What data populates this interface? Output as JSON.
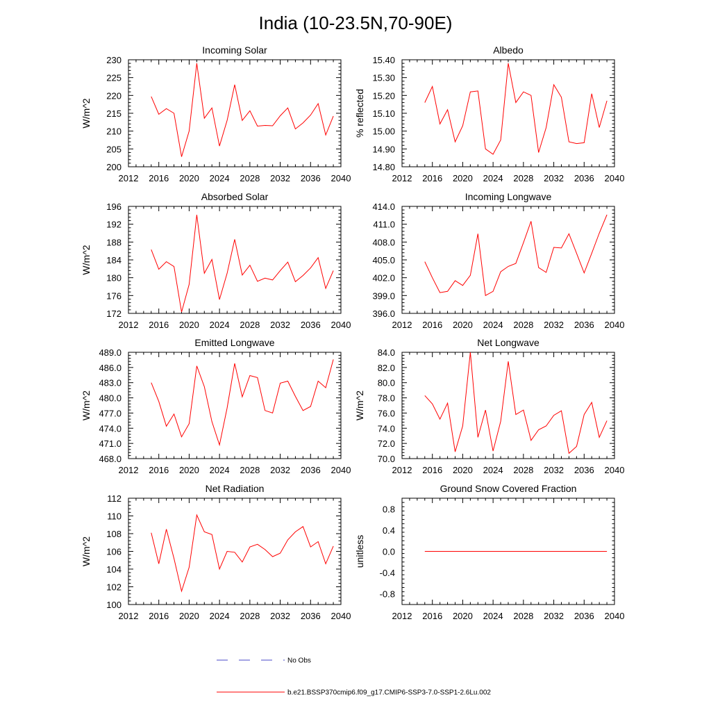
{
  "page": {
    "title": "India (10-23.5N,70-90E)"
  },
  "legend": {
    "obs_label": "No Obs",
    "model_label": "b.e21.BSSP370cmip6.f09_g17.CMIP6-SSP3-7.0-SSP1-2.6Lu.002",
    "obs_color": "#4a4ac8",
    "model_color": "#ff0000"
  },
  "chart_data": [
    {
      "type": "line",
      "title": "Incoming Solar",
      "ylabel": "W/m^2",
      "xlim": [
        2012,
        2040
      ],
      "xticks": [
        2012,
        2016,
        2020,
        2024,
        2028,
        2032,
        2036,
        2040
      ],
      "ylim": [
        200,
        230
      ],
      "yticks": [
        200,
        205,
        210,
        215,
        220,
        225,
        230
      ],
      "ydecimals": 0,
      "series": [
        {
          "color": "#ff0000",
          "x": [
            2015,
            2016,
            2017,
            2018,
            2019,
            2020,
            2021,
            2022,
            2023,
            2024,
            2025,
            2026,
            2027,
            2028,
            2029,
            2030,
            2031,
            2032,
            2033,
            2034,
            2035,
            2036,
            2037,
            2038,
            2039
          ],
          "values": [
            219.7,
            214.7,
            216.3,
            215.0,
            202.8,
            210.0,
            229.0,
            213.6,
            216.5,
            205.8,
            213.0,
            223.0,
            213.0,
            215.7,
            211.4,
            211.6,
            211.5,
            214.3,
            216.5,
            210.6,
            212.3,
            214.5,
            217.7,
            208.9,
            214.2
          ]
        }
      ]
    },
    {
      "type": "line",
      "title": "Albedo",
      "ylabel": "% reflected",
      "xlim": [
        2012,
        2040
      ],
      "xticks": [
        2012,
        2016,
        2020,
        2024,
        2028,
        2032,
        2036,
        2040
      ],
      "ylim": [
        14.8,
        15.4
      ],
      "yticks": [
        14.8,
        14.9,
        15.0,
        15.1,
        15.2,
        15.3,
        15.4
      ],
      "ydecimals": 2,
      "series": [
        {
          "color": "#ff0000",
          "x": [
            2015,
            2016,
            2017,
            2018,
            2019,
            2020,
            2021,
            2022,
            2023,
            2024,
            2025,
            2026,
            2027,
            2028,
            2029,
            2030,
            2031,
            2032,
            2033,
            2034,
            2035,
            2036,
            2037,
            2038,
            2039
          ],
          "values": [
            15.16,
            15.25,
            15.04,
            15.12,
            14.94,
            15.03,
            15.22,
            15.225,
            14.9,
            14.87,
            14.95,
            15.38,
            15.16,
            15.22,
            15.2,
            14.88,
            15.02,
            15.26,
            15.19,
            14.94,
            14.93,
            14.935,
            15.21,
            15.02,
            15.17
          ]
        }
      ]
    },
    {
      "type": "line",
      "title": "Absorbed Solar",
      "ylabel": "W/m^2",
      "xlim": [
        2012,
        2040
      ],
      "xticks": [
        2012,
        2016,
        2020,
        2024,
        2028,
        2032,
        2036,
        2040
      ],
      "ylim": [
        172,
        196
      ],
      "yticks": [
        172,
        176,
        180,
        184,
        188,
        192,
        196
      ],
      "ydecimals": 0,
      "series": [
        {
          "color": "#ff0000",
          "x": [
            2015,
            2016,
            2017,
            2018,
            2019,
            2020,
            2021,
            2022,
            2023,
            2024,
            2025,
            2026,
            2027,
            2028,
            2029,
            2030,
            2031,
            2032,
            2033,
            2034,
            2035,
            2036,
            2037,
            2038,
            2039
          ],
          "values": [
            186.3,
            181.9,
            183.6,
            182.5,
            172.3,
            178.5,
            194.1,
            181.0,
            184.1,
            175.1,
            181.0,
            188.6,
            180.6,
            182.8,
            179.2,
            179.9,
            179.5,
            181.6,
            183.5,
            179.1,
            180.5,
            182.2,
            184.5,
            177.6,
            181.6
          ]
        }
      ]
    },
    {
      "type": "line",
      "title": "Incoming Longwave",
      "ylabel": "",
      "xlim": [
        2012,
        2040
      ],
      "xticks": [
        2012,
        2016,
        2020,
        2024,
        2028,
        2032,
        2036,
        2040
      ],
      "ylim": [
        396,
        414
      ],
      "yticks": [
        396,
        399,
        402,
        405,
        408,
        411,
        414
      ],
      "ydecimals": 1,
      "series": [
        {
          "color": "#ff0000",
          "x": [
            2015,
            2016,
            2017,
            2018,
            2019,
            2020,
            2021,
            2022,
            2023,
            2024,
            2025,
            2026,
            2027,
            2028,
            2029,
            2030,
            2031,
            2032,
            2033,
            2034,
            2035,
            2036,
            2037,
            2038,
            2039
          ],
          "values": [
            404.7,
            402.0,
            399.5,
            399.7,
            401.5,
            400.7,
            402.4,
            409.4,
            399.0,
            399.7,
            403.0,
            403.9,
            404.4,
            407.9,
            411.5,
            403.7,
            402.9,
            407.1,
            407.0,
            409.4,
            406.1,
            402.8,
            406.1,
            409.5,
            412.6
          ]
        }
      ]
    },
    {
      "type": "line",
      "title": "Emitted Longwave",
      "ylabel": "W/m^2",
      "xlim": [
        2012,
        2040
      ],
      "xticks": [
        2012,
        2016,
        2020,
        2024,
        2028,
        2032,
        2036,
        2040
      ],
      "ylim": [
        468,
        489
      ],
      "yticks": [
        468,
        471,
        474,
        477,
        480,
        483,
        486,
        489
      ],
      "ydecimals": 1,
      "series": [
        {
          "color": "#ff0000",
          "x": [
            2015,
            2016,
            2017,
            2018,
            2019,
            2020,
            2021,
            2022,
            2023,
            2024,
            2025,
            2026,
            2027,
            2028,
            2029,
            2030,
            2031,
            2032,
            2033,
            2034,
            2035,
            2036,
            2037,
            2038,
            2039
          ],
          "values": [
            483.0,
            479.3,
            474.4,
            476.8,
            472.3,
            474.9,
            486.3,
            482.2,
            475.3,
            470.7,
            478.0,
            486.8,
            480.2,
            484.4,
            484.0,
            477.5,
            477.0,
            482.9,
            483.3,
            480.3,
            477.5,
            478.3,
            483.3,
            482.0,
            487.6
          ]
        }
      ]
    },
    {
      "type": "line",
      "title": "Net Longwave",
      "ylabel": "W/m^2",
      "xlim": [
        2012,
        2040
      ],
      "xticks": [
        2012,
        2016,
        2020,
        2024,
        2028,
        2032,
        2036,
        2040
      ],
      "ylim": [
        70,
        84
      ],
      "yticks": [
        70,
        72,
        74,
        76,
        78,
        80,
        82,
        84
      ],
      "ydecimals": 1,
      "series": [
        {
          "color": "#ff0000",
          "x": [
            2015,
            2016,
            2017,
            2018,
            2019,
            2020,
            2021,
            2022,
            2023,
            2024,
            2025,
            2026,
            2027,
            2028,
            2029,
            2030,
            2031,
            2032,
            2033,
            2034,
            2035,
            2036,
            2037,
            2038,
            2039
          ],
          "values": [
            78.3,
            77.2,
            75.2,
            77.3,
            70.9,
            74.3,
            84.0,
            72.8,
            76.4,
            71.0,
            74.9,
            82.8,
            75.8,
            76.4,
            72.4,
            73.8,
            74.3,
            75.7,
            76.3,
            70.7,
            71.6,
            75.8,
            77.4,
            72.8,
            75.0
          ]
        }
      ]
    },
    {
      "type": "line",
      "title": "Net Radiation",
      "ylabel": "W/m^2",
      "xlim": [
        2012,
        2040
      ],
      "xticks": [
        2012,
        2016,
        2020,
        2024,
        2028,
        2032,
        2036,
        2040
      ],
      "ylim": [
        100,
        112
      ],
      "yticks": [
        100,
        102,
        104,
        106,
        108,
        110,
        112
      ],
      "ydecimals": 0,
      "series": [
        {
          "color": "#ff0000",
          "x": [
            2015,
            2016,
            2017,
            2018,
            2019,
            2020,
            2021,
            2022,
            2023,
            2024,
            2025,
            2026,
            2027,
            2028,
            2029,
            2030,
            2031,
            2032,
            2033,
            2034,
            2035,
            2036,
            2037,
            2038,
            2039
          ],
          "values": [
            108.1,
            104.6,
            108.5,
            105.2,
            101.5,
            104.2,
            110.1,
            108.2,
            107.9,
            104.0,
            106.0,
            105.9,
            104.8,
            106.5,
            106.8,
            106.2,
            105.4,
            105.8,
            107.3,
            108.2,
            108.8,
            106.5,
            107.1,
            104.6,
            106.6
          ]
        }
      ]
    },
    {
      "type": "line",
      "title": "Ground Snow Covered Fraction",
      "ylabel": "unitless",
      "xlim": [
        2012,
        2040
      ],
      "xticks": [
        2012,
        2016,
        2020,
        2024,
        2028,
        2032,
        2036,
        2040
      ],
      "ylim": [
        -1,
        1
      ],
      "yticks": [
        -0.8,
        -0.4,
        0.0,
        0.4,
        0.8
      ],
      "ydecimals": 1,
      "series": [
        {
          "color": "#ff0000",
          "x": [
            2015,
            2039
          ],
          "values": [
            0.0,
            0.0
          ]
        }
      ]
    }
  ]
}
